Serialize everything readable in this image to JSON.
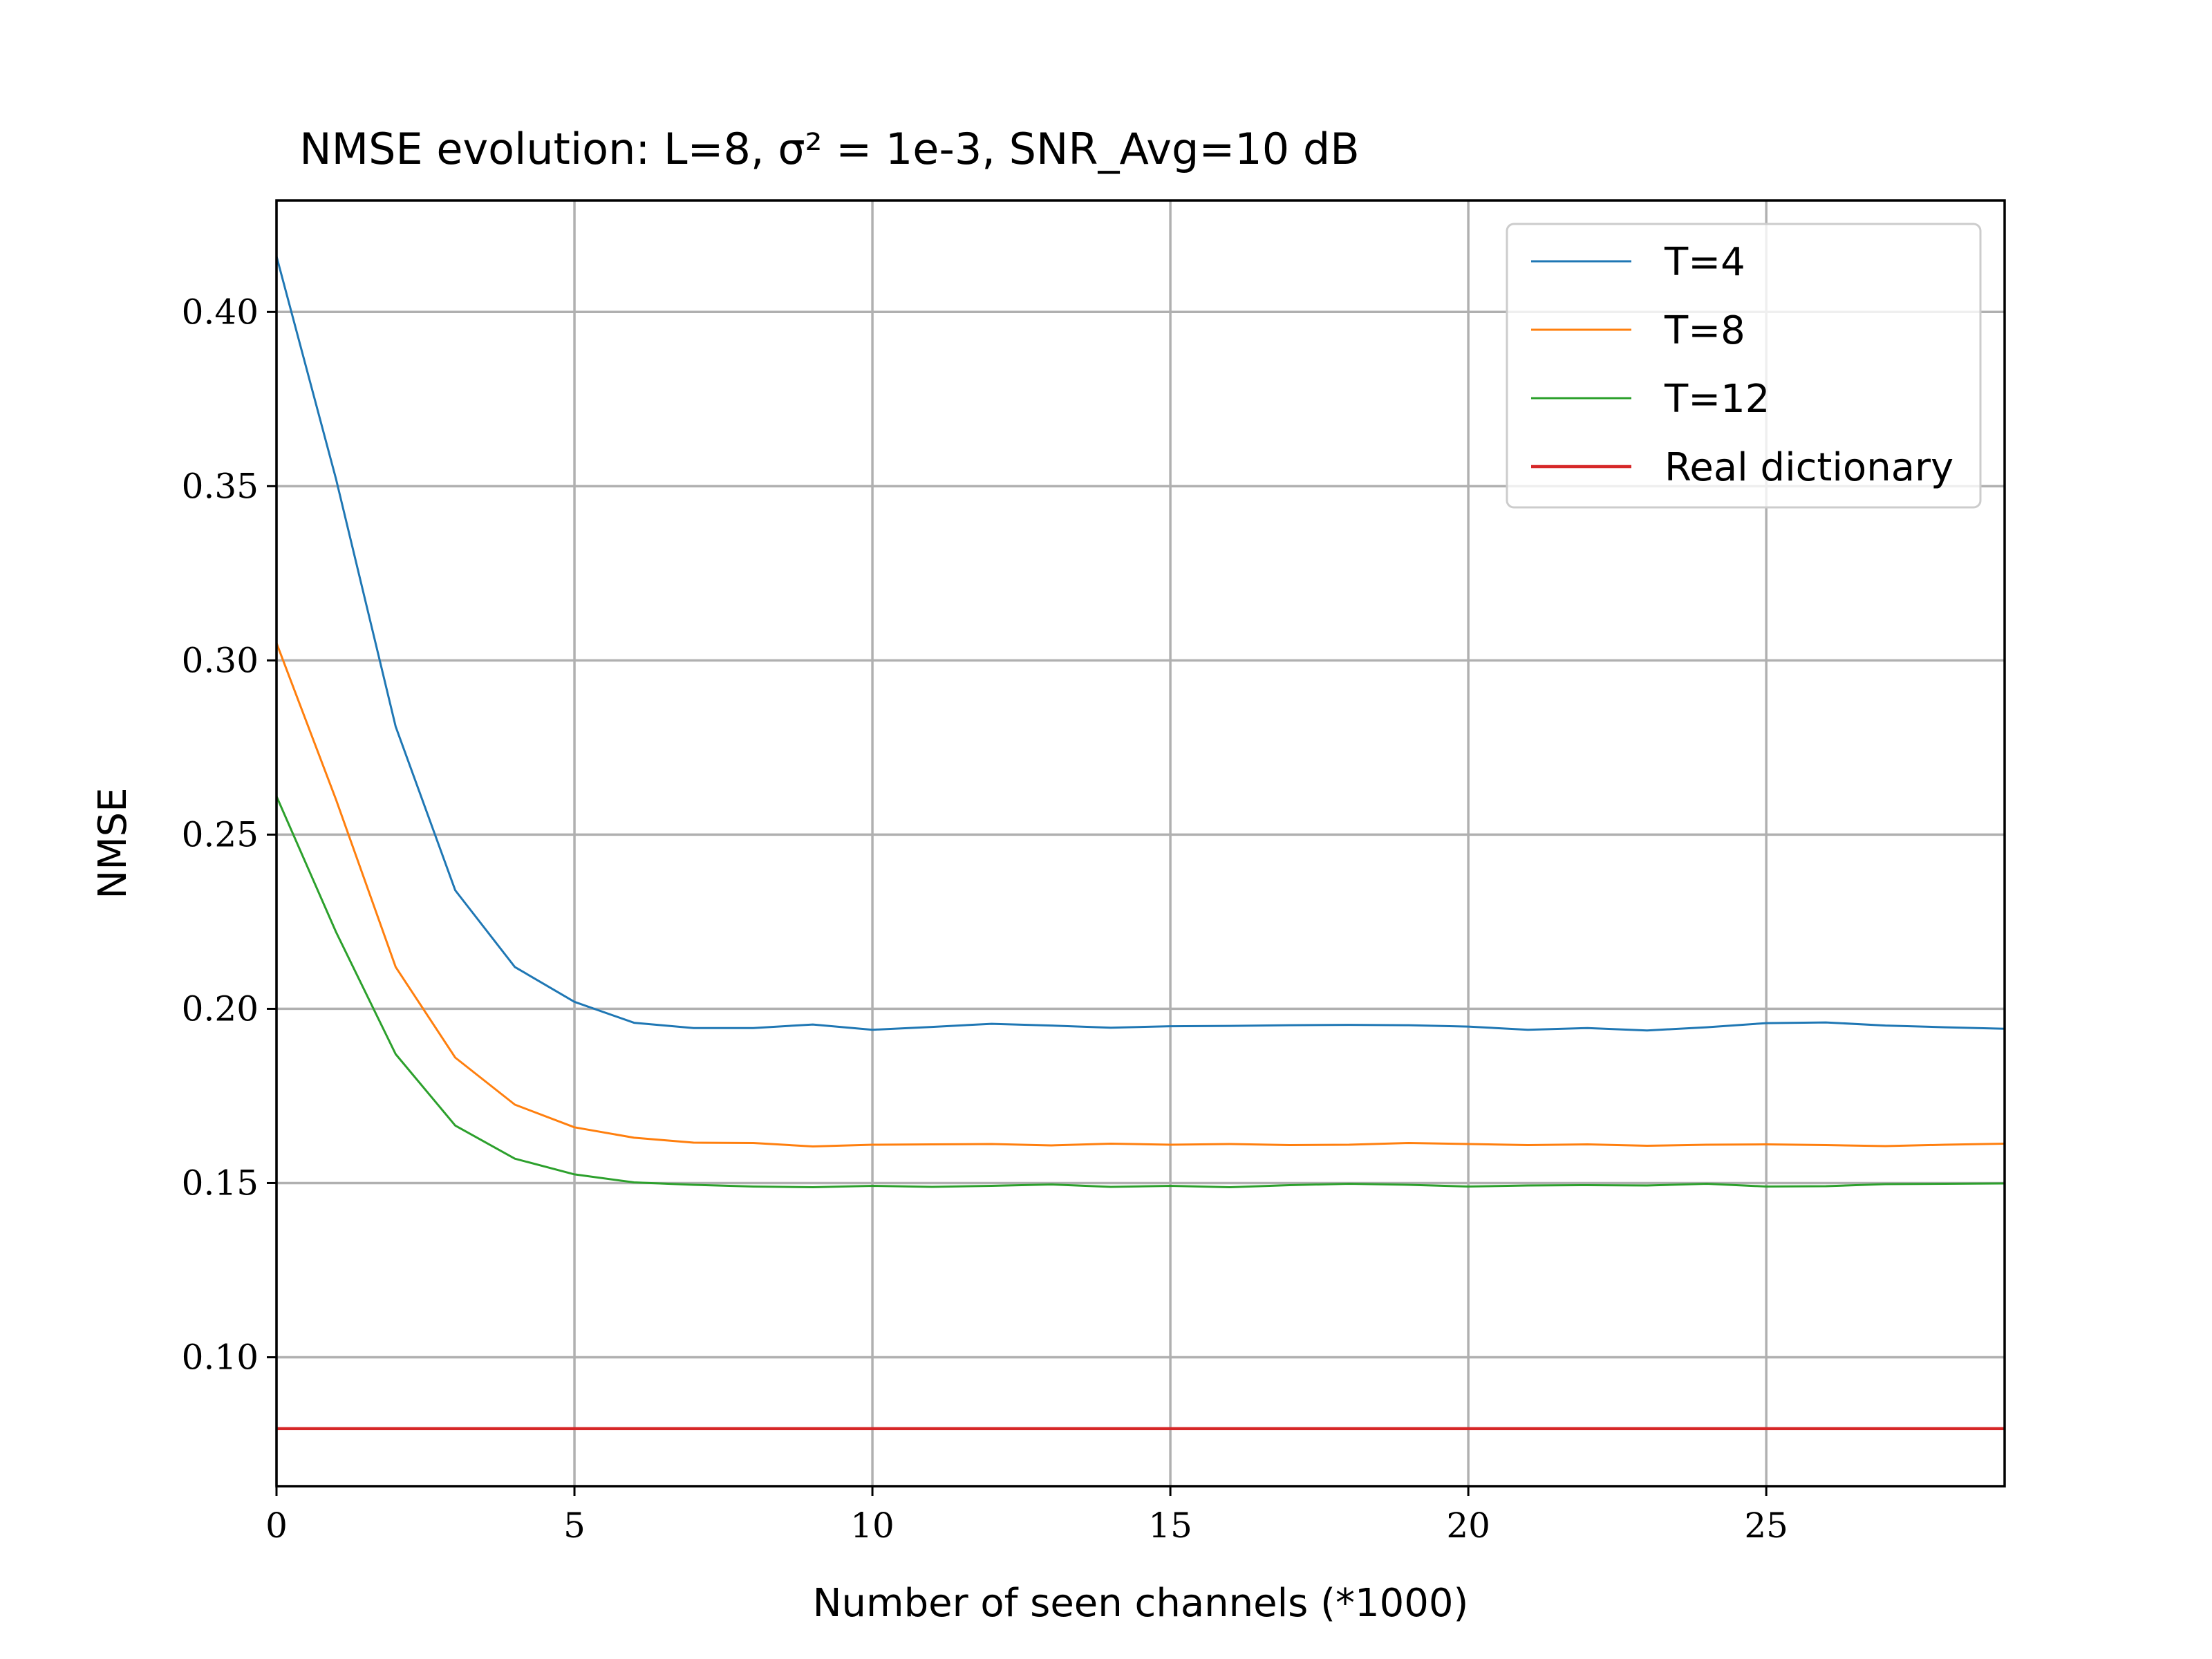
{
  "chart_data": {
    "type": "line",
    "title": "NMSE evolution: L=8, σ² = 1e-3, SNR_Avg=10 dB",
    "xlabel": "Number of seen channels (*1000)",
    "ylabel": "NMSE",
    "xlim": [
      0,
      29
    ],
    "ylim": [
      0.063,
      0.432
    ],
    "xticks": [
      0,
      5,
      10,
      15,
      20,
      25
    ],
    "xtick_labels": [
      "0",
      "5",
      "10",
      "15",
      "20",
      "25"
    ],
    "yticks": [
      0.1,
      0.15,
      0.2,
      0.25,
      0.3,
      0.35,
      0.4
    ],
    "ytick_labels": [
      "0.10",
      "0.15",
      "0.20",
      "0.25",
      "0.30",
      "0.35",
      "0.40"
    ],
    "grid": true,
    "legend_position": "top-right",
    "x": [
      0,
      1,
      2,
      3,
      4,
      5,
      6,
      7,
      8,
      9,
      10,
      11,
      12,
      13,
      14,
      15,
      16,
      17,
      18,
      19,
      20,
      21,
      22,
      23,
      24,
      25,
      26,
      27,
      28,
      29
    ],
    "series": [
      {
        "name": "T=4",
        "color": "#1f77b4",
        "values": [
          0.416,
          0.352,
          0.281,
          0.234,
          0.212,
          0.202,
          0.196,
          0.1945,
          0.1945,
          0.1955,
          0.194,
          0.1948,
          0.1957,
          0.1952,
          0.1946,
          0.195,
          0.1951,
          0.1953,
          0.1954,
          0.1953,
          0.1949,
          0.194,
          0.1945,
          0.1938,
          0.1947,
          0.1959,
          0.1961,
          0.1952,
          0.1947,
          0.1943
        ]
      },
      {
        "name": "T=8",
        "color": "#ff7f0e",
        "values": [
          0.305,
          0.26,
          0.212,
          0.186,
          0.1725,
          0.166,
          0.163,
          0.1616,
          0.1615,
          0.1605,
          0.161,
          0.1611,
          0.1612,
          0.1608,
          0.1613,
          0.161,
          0.1612,
          0.1609,
          0.161,
          0.1615,
          0.1612,
          0.1609,
          0.1611,
          0.1607,
          0.161,
          0.1611,
          0.1609,
          0.1606,
          0.161,
          0.1613
        ]
      },
      {
        "name": "T=12",
        "color": "#2ca02c",
        "values": [
          0.261,
          0.222,
          0.187,
          0.1665,
          0.157,
          0.1525,
          0.1502,
          0.1495,
          0.149,
          0.1488,
          0.1492,
          0.1489,
          0.1492,
          0.1496,
          0.1489,
          0.1492,
          0.1488,
          0.1494,
          0.1498,
          0.1495,
          0.149,
          0.1493,
          0.1494,
          0.1493,
          0.1498,
          0.149,
          0.1491,
          0.1497,
          0.1498,
          0.1499
        ]
      },
      {
        "name": "Real dictionary",
        "color": "#d62728",
        "values": [
          0.0795,
          0.0795,
          0.0795,
          0.0795,
          0.0795,
          0.0795,
          0.0795,
          0.0795,
          0.0795,
          0.0795,
          0.0795,
          0.0795,
          0.0795,
          0.0795,
          0.0795,
          0.0795,
          0.0795,
          0.0795,
          0.0795,
          0.0795,
          0.0795,
          0.0795,
          0.0795,
          0.0795,
          0.0795,
          0.0795,
          0.0795,
          0.0795,
          0.0795,
          0.0795
        ]
      }
    ]
  }
}
